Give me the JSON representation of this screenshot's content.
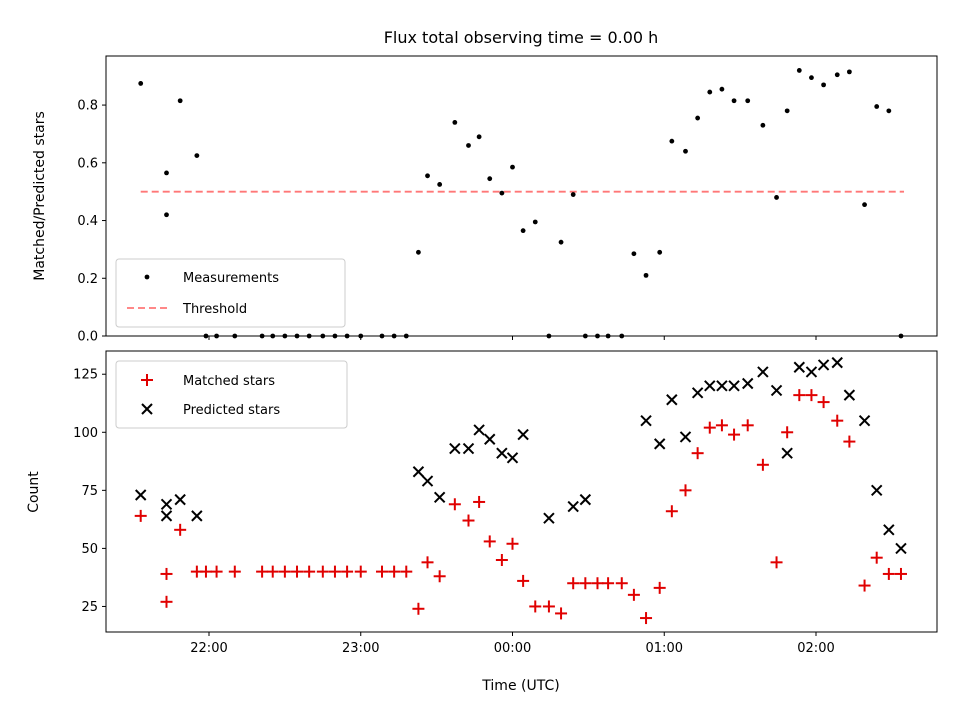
{
  "colors": {
    "measurement": "#000000",
    "threshold": "#ff7777",
    "matched": "#e00000",
    "predicted": "#000000"
  },
  "chart_data": [
    {
      "type": "scatter",
      "title": "Flux total observing time = 0.00 h",
      "xlabel": "",
      "ylabel": "Matched/Predicted stars",
      "ylim": [
        0,
        0.97
      ],
      "yticks": [
        "0.0",
        "0.2",
        "0.4",
        "0.6",
        "0.8"
      ],
      "xticks": [
        "22:00",
        "23:00",
        "00:00",
        "01:00",
        "02:00"
      ],
      "x_unit": "hours (UTC), continuing past midnight",
      "legend": {
        "placement": "lower-left",
        "entries": [
          "Measurements",
          "Threshold"
        ]
      },
      "series": [
        {
          "name": "Measurements",
          "marker": "dot",
          "x": [
            21.55,
            21.72,
            21.72,
            21.81,
            21.92,
            21.98,
            22.05,
            22.17,
            22.35,
            22.42,
            22.5,
            22.58,
            22.66,
            22.75,
            22.83,
            22.91,
            23.0,
            23.14,
            23.22,
            23.3,
            23.38,
            23.44,
            23.52,
            23.62,
            23.71,
            23.78,
            23.85,
            23.93,
            24.0,
            24.07,
            24.15,
            24.24,
            24.32,
            24.4,
            24.48,
            24.56,
            24.63,
            24.72,
            24.8,
            24.88,
            24.97,
            25.05,
            25.14,
            25.22,
            25.3,
            25.38,
            25.46,
            25.55,
            25.65,
            25.74,
            25.81,
            25.89,
            25.97,
            26.05,
            26.14,
            26.22,
            26.32,
            26.4,
            26.48,
            26.56
          ],
          "y": [
            0.875,
            0.565,
            0.42,
            0.815,
            0.625,
            0.0,
            0.0,
            0.0,
            0.0,
            0.0,
            0.0,
            0.0,
            0.0,
            0.0,
            0.0,
            0.0,
            0.0,
            0.0,
            0.0,
            0.0,
            0.29,
            0.555,
            0.525,
            0.74,
            0.66,
            0.69,
            0.545,
            0.495,
            0.585,
            0.365,
            0.395,
            0.0,
            0.325,
            0.49,
            0.0,
            0.0,
            0.0,
            0.0,
            0.285,
            0.21,
            0.29,
            0.675,
            0.64,
            0.755,
            0.845,
            0.855,
            0.815,
            0.815,
            0.73,
            0.48,
            0.78,
            0.92,
            0.895,
            0.87,
            0.905,
            0.915,
            0.455,
            0.795,
            0.78,
            0.0
          ]
        },
        {
          "name": "Threshold",
          "marker": "dashed-line",
          "x": [
            21.55,
            26.58
          ],
          "y": [
            0.5,
            0.5
          ]
        }
      ]
    },
    {
      "type": "scatter",
      "title": "",
      "xlabel": "Time (UTC)",
      "ylabel": "Count",
      "ylim": [
        14,
        135
      ],
      "yticks": [
        "25",
        "50",
        "75",
        "100",
        "125"
      ],
      "xticks": [
        "22:00",
        "23:00",
        "00:00",
        "01:00",
        "02:00"
      ],
      "x_unit": "hours (UTC), continuing past midnight",
      "legend": {
        "placement": "upper-left",
        "entries": [
          "Matched stars",
          "Predicted stars"
        ]
      },
      "series": [
        {
          "name": "Matched stars",
          "marker": "plus",
          "x": [
            21.55,
            21.72,
            21.72,
            21.81,
            21.92,
            21.98,
            22.05,
            22.17,
            22.35,
            22.42,
            22.5,
            22.58,
            22.66,
            22.75,
            22.83,
            22.91,
            23.0,
            23.14,
            23.22,
            23.3,
            23.38,
            23.44,
            23.52,
            23.62,
            23.71,
            23.78,
            23.85,
            23.93,
            24.0,
            24.07,
            24.15,
            24.24,
            24.32,
            24.4,
            24.48,
            24.56,
            24.63,
            24.72,
            24.8,
            24.88,
            24.97,
            25.05,
            25.14,
            25.22,
            25.3,
            25.38,
            25.46,
            25.55,
            25.65,
            25.74,
            25.81,
            25.89,
            25.97,
            26.05,
            26.14,
            26.22,
            26.32,
            26.4,
            26.48,
            26.56
          ],
          "y": [
            64,
            39,
            27,
            58,
            40,
            40,
            40,
            40,
            40,
            40,
            40,
            40,
            40,
            40,
            40,
            40,
            40,
            40,
            40,
            40,
            24,
            44,
            38,
            69,
            62,
            70,
            53,
            45,
            52,
            36,
            25,
            25,
            22,
            35,
            35,
            35,
            35,
            35,
            30,
            20,
            33,
            66,
            75,
            91,
            102,
            103,
            99,
            103,
            86,
            44,
            100,
            116,
            116,
            113,
            105,
            96,
            34,
            46,
            39,
            39
          ]
        },
        {
          "name": "Predicted stars",
          "marker": "x",
          "x": [
            21.55,
            21.72,
            21.72,
            21.81,
            21.92,
            23.38,
            23.44,
            23.52,
            23.62,
            23.71,
            23.78,
            23.85,
            23.93,
            24.0,
            24.07,
            24.24,
            24.4,
            24.48,
            24.88,
            24.97,
            25.05,
            25.14,
            25.22,
            25.3,
            25.38,
            25.46,
            25.55,
            25.65,
            25.74,
            25.81,
            25.89,
            25.97,
            26.05,
            26.14,
            26.22,
            26.32,
            26.4,
            26.48,
            26.56
          ],
          "y": [
            73,
            69,
            64,
            71,
            64,
            83,
            79,
            72,
            93,
            93,
            101,
            97,
            91,
            89,
            99,
            63,
            68,
            71,
            105,
            95,
            114,
            98,
            117,
            120,
            120,
            120,
            121,
            126,
            118,
            91,
            128,
            126,
            129,
            130,
            116,
            105,
            75,
            58,
            50
          ]
        }
      ]
    }
  ]
}
